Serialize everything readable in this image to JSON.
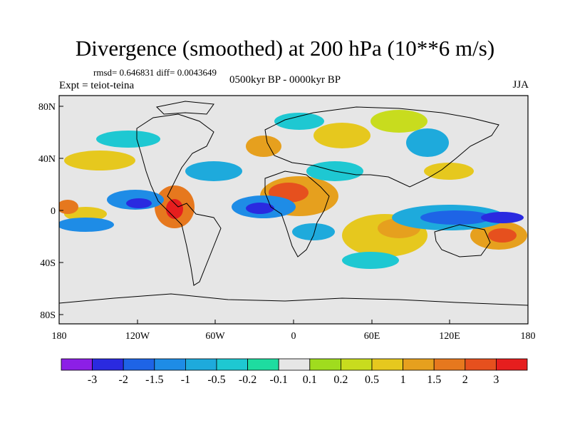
{
  "header": {
    "title": "Divergence (smoothed) at 200 hPa (10**6 m/s)",
    "stats": "rmsd= 0.646831 diff= 0.0043649",
    "experiment": "Expt = teiot-teina",
    "period": "0500kyr BP - 0000kyr BP",
    "season": "JJA"
  },
  "map": {
    "y_ticks": [
      "80N",
      "40N",
      "0",
      "40S",
      "80S"
    ],
    "x_ticks": [
      "180",
      "120W",
      "60W",
      "0",
      "60E",
      "120E",
      "180"
    ],
    "land_color": "#e6e6e6",
    "coast_color": "#000000"
  },
  "colorbar": {
    "labels": [
      "-3",
      "-2",
      "-1.5",
      "-1",
      "-0.5",
      "-0.2",
      "-0.1",
      "0.1",
      "0.2",
      "0.5",
      "1",
      "1.5",
      "2",
      "3"
    ],
    "colors": [
      "#8c1fe6",
      "#2a2ae0",
      "#1e64e6",
      "#1e8ce6",
      "#1eaadc",
      "#1ec8d2",
      "#1edca0",
      "#e6e6e6",
      "#a0dc1e",
      "#c8dc1e",
      "#e6c81e",
      "#e6a01e",
      "#e6781e",
      "#e6501e",
      "#e61e1e"
    ]
  }
}
